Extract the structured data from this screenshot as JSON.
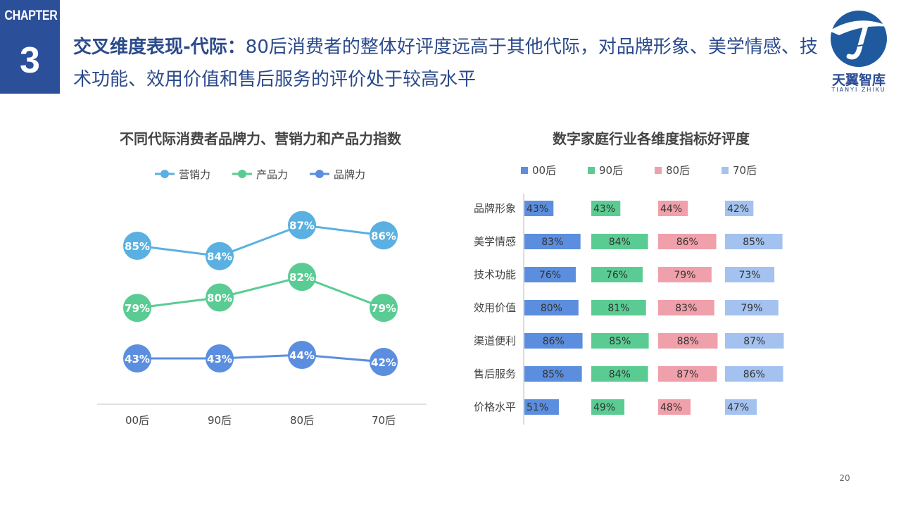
{
  "chapter": {
    "label": "CHAPTER",
    "number": "3"
  },
  "page_title": {
    "lead": "交叉维度表现-代际：",
    "body": "80后消费者的整体好评度远高于其他代际，对品牌形象、美学情感、技术功能、效用价值和售后服务的评价处于较高水平"
  },
  "logo": {
    "name": "天翼智库",
    "sub": "TIANYI ZHIKU"
  },
  "page_number": "20",
  "colors": {
    "brand": "#2c4f9a",
    "营销力": "#5ab0e0",
    "产品力": "#5acc93",
    "品牌力": "#5b8ede",
    "00后": "#5b8ede",
    "90后": "#5acc93",
    "80后": "#f0a0aa",
    "70后": "#a3c2f0"
  },
  "chart_data": [
    {
      "type": "line",
      "title": "不同代际消费者品牌力、营销力和产品力指数",
      "categories": [
        "00后",
        "90后",
        "80后",
        "70后"
      ],
      "legend_position": "top",
      "grid": false,
      "series": [
        {
          "name": "营销力",
          "values": [
            85,
            84,
            87,
            86
          ],
          "labels": [
            "85%",
            "84%",
            "87%",
            "86%"
          ]
        },
        {
          "name": "产品力",
          "values": [
            79,
            80,
            82,
            79
          ],
          "labels": [
            "79%",
            "80%",
            "82%",
            "79%"
          ]
        },
        {
          "name": "品牌力",
          "values": [
            43,
            43,
            44,
            42
          ],
          "labels": [
            "43%",
            "43%",
            "44%",
            "42%"
          ]
        }
      ]
    },
    {
      "type": "bar",
      "title": "数字家庭行业各维度指标好评度",
      "orientation": "horizontal",
      "legend_position": "top",
      "grid": false,
      "categories": [
        "品牌形象",
        "美学情感",
        "技术功能",
        "效用价值",
        "渠道便利",
        "售后服务",
        "价格水平"
      ],
      "series": [
        {
          "name": "00后",
          "values": [
            43,
            83,
            76,
            80,
            86,
            85,
            51
          ],
          "labels": [
            "43%",
            "83%",
            "76%",
            "80%",
            "86%",
            "85%",
            "51%"
          ]
        },
        {
          "name": "90后",
          "values": [
            43,
            84,
            76,
            81,
            85,
            84,
            49
          ],
          "labels": [
            "43%",
            "84%",
            "76%",
            "81%",
            "85%",
            "84%",
            "49%"
          ]
        },
        {
          "name": "80后",
          "values": [
            44,
            86,
            79,
            83,
            88,
            87,
            48
          ],
          "labels": [
            "44%",
            "86%",
            "79%",
            "83%",
            "88%",
            "87%",
            "48%"
          ]
        },
        {
          "name": "70后",
          "values": [
            42,
            85,
            73,
            79,
            87,
            86,
            47
          ],
          "labels": [
            "42%",
            "85%",
            "73%",
            "79%",
            "87%",
            "86%",
            "47%"
          ]
        }
      ]
    }
  ]
}
